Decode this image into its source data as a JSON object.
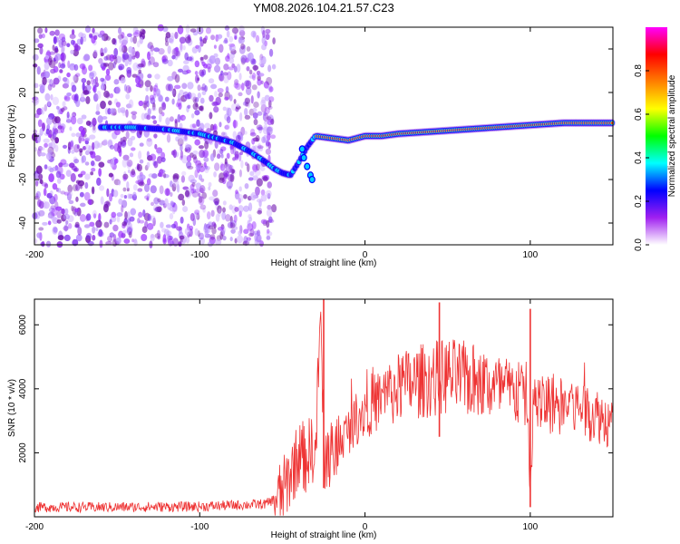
{
  "figure_title": "YM08.2026.104.21.57.C23",
  "colors": {
    "snr_line": "#ee3333",
    "spectrogram_noise": "#8a2be2",
    "ridge": "#ff0000"
  },
  "chart_data": [
    {
      "type": "heatmap",
      "title": "",
      "xlabel": "Height of straight line (km)",
      "ylabel": "Frequency (Hz)",
      "xlim": [
        -200,
        150
      ],
      "ylim": [
        -50,
        50
      ],
      "xticks": [
        -200,
        -100,
        0,
        100
      ],
      "xtick_labels": [
        "-200",
        "-100",
        "0",
        "100"
      ],
      "yticks": [
        -40,
        -20,
        0,
        20,
        40
      ],
      "ytick_labels": [
        "-40",
        "-20",
        "0",
        "20",
        "40"
      ],
      "noise_region_x": [
        -200,
        -55
      ],
      "ridge": {
        "x": [
          -160,
          -140,
          -120,
          -100,
          -90,
          -80,
          -70,
          -60,
          -55,
          -50,
          -45,
          -40,
          -35,
          -30,
          -20,
          -10,
          0,
          10,
          20,
          40,
          60,
          80,
          100,
          120,
          150
        ],
        "y": [
          4,
          4,
          3,
          1,
          -1,
          -3,
          -7,
          -12,
          -15,
          -17,
          -18,
          -12,
          -5,
          0,
          -1,
          -2,
          0,
          0,
          1,
          2,
          3,
          4,
          5,
          6,
          6
        ]
      },
      "colorbar": {
        "label": "Normalized spectral amplitude",
        "range": [
          0.0,
          1.0
        ],
        "ticks": [
          0.0,
          0.2,
          0.4,
          0.6,
          0.8
        ],
        "tick_labels": [
          "0.0",
          "0.2",
          "0.4",
          "0.6",
          "0.8"
        ],
        "colormap": [
          "#ffffff",
          "#a020f0",
          "#0000ff",
          "#00ffff",
          "#00ff00",
          "#ffff00",
          "#ff7f00",
          "#ff0000",
          "#ff00ff"
        ]
      }
    },
    {
      "type": "line",
      "title": "",
      "xlabel": "Height of straight line (km)",
      "ylabel": "SNR (10 * v/v)",
      "xlim": [
        -200,
        150
      ],
      "ylim": [
        0,
        6800
      ],
      "xticks": [
        -200,
        -100,
        0,
        100
      ],
      "xtick_labels": [
        "-200",
        "-100",
        "0",
        "100"
      ],
      "yticks": [
        2000,
        4000,
        6000
      ],
      "ytick_labels": [
        "2000",
        "4000",
        "6000"
      ],
      "series": [
        {
          "name": "SNR",
          "x": [
            -200,
            -150,
            -100,
            -60,
            -50,
            -44,
            -40,
            -36,
            -32,
            -30,
            -27,
            -25,
            -23,
            -20,
            -15,
            -10,
            -5,
            0,
            10,
            20,
            30,
            40,
            50,
            60,
            70,
            80,
            90,
            98,
            100,
            102,
            104,
            110,
            120,
            130,
            140,
            150
          ],
          "y": [
            300,
            300,
            320,
            400,
            700,
            1500,
            1900,
            1800,
            2200,
            1700,
            6400,
            2000,
            1800,
            2000,
            2400,
            2700,
            3100,
            3400,
            3700,
            4000,
            4200,
            4300,
            4400,
            4300,
            4200,
            4000,
            3900,
            3800,
            700,
            3600,
            3500,
            3600,
            3500,
            3400,
            3200,
            2900
          ],
          "spikes": [
            {
              "x": -25,
              "min": 900,
              "max": 6800
            },
            {
              "x": 45,
              "min": 2500,
              "max": 6700
            },
            {
              "x": 100,
              "min": 300,
              "max": 6500
            }
          ]
        }
      ]
    }
  ]
}
